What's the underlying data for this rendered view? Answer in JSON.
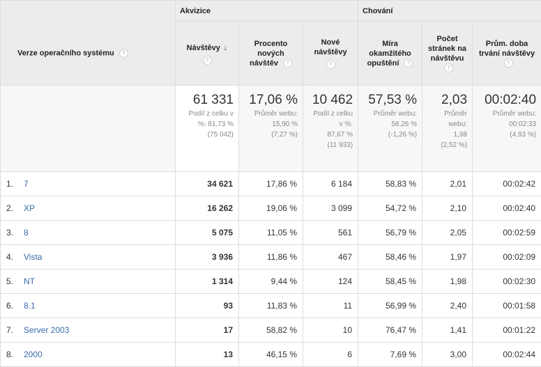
{
  "header": {
    "dimension_label": "Verze operačního systému",
    "group_acquisition": "Akvizice",
    "group_behavior": "Chování",
    "help_glyph": "?",
    "sort_glyph": "↓",
    "columns": [
      {
        "key": "visits",
        "label": "Návštěvy"
      },
      {
        "key": "pct_new",
        "label": "Procento nových návštěv"
      },
      {
        "key": "new_visits",
        "label": "Nové návštěvy"
      },
      {
        "key": "bounce",
        "label": "Míra okamžitého opuštění"
      },
      {
        "key": "pages",
        "label": "Počet stránek na návštěvu"
      },
      {
        "key": "duration",
        "label": "Prům. doba trvání návštěvy"
      }
    ]
  },
  "totals": {
    "visits": {
      "value": "61 331",
      "sub1": "Podíl z celku v",
      "sub2": "%: 81,73 %",
      "sub3": "(75 042)"
    },
    "pct_new": {
      "value": "17,06 %",
      "sub1": "Průměr webu:",
      "sub2": "15,90 %",
      "sub3": "(7,27 %)"
    },
    "new_visits": {
      "value": "10 462",
      "sub1": "Podíl z celku",
      "sub2": "v %:",
      "sub3": "87,67 %",
      "sub4": "(11 933)"
    },
    "bounce": {
      "value": "57,53 %",
      "sub1": "Průměr webu:",
      "sub2": "58,26 %",
      "sub3": "(-1,26 %)"
    },
    "pages": {
      "value": "2,03",
      "sub1": "Průměr",
      "sub2": "webu:",
      "sub3": "1,98",
      "sub4": "(2,52 %)"
    },
    "duration": {
      "value": "00:02:40",
      "sub1": "Průměr webu:",
      "sub2": "00:02:33",
      "sub3": "(4,93 %)"
    }
  },
  "rows": [
    {
      "idx": "1.",
      "name": "7",
      "visits": "34 621",
      "pct_new": "17,86 %",
      "new_visits": "6 184",
      "bounce": "58,83 %",
      "pages": "2,01",
      "duration": "00:02:42"
    },
    {
      "idx": "2.",
      "name": "XP",
      "visits": "16 262",
      "pct_new": "19,06 %",
      "new_visits": "3 099",
      "bounce": "54,72 %",
      "pages": "2,10",
      "duration": "00:02:40"
    },
    {
      "idx": "3.",
      "name": "8",
      "visits": "5 075",
      "pct_new": "11,05 %",
      "new_visits": "561",
      "bounce": "56,79 %",
      "pages": "2,05",
      "duration": "00:02:59"
    },
    {
      "idx": "4.",
      "name": "Vista",
      "visits": "3 936",
      "pct_new": "11,86 %",
      "new_visits": "467",
      "bounce": "58,46 %",
      "pages": "1,97",
      "duration": "00:02:09"
    },
    {
      "idx": "5.",
      "name": "NT",
      "visits": "1 314",
      "pct_new": "9,44 %",
      "new_visits": "124",
      "bounce": "58,45 %",
      "pages": "1,98",
      "duration": "00:02:30"
    },
    {
      "idx": "6.",
      "name": "8.1",
      "visits": "93",
      "pct_new": "11,83 %",
      "new_visits": "11",
      "bounce": "56,99 %",
      "pages": "2,40",
      "duration": "00:01:58"
    },
    {
      "idx": "7.",
      "name": "Server 2003",
      "visits": "17",
      "pct_new": "58,82 %",
      "new_visits": "10",
      "bounce": "76,47 %",
      "pages": "1,41",
      "duration": "00:01:22"
    },
    {
      "idx": "8.",
      "name": "2000",
      "visits": "13",
      "pct_new": "46,15 %",
      "new_visits": "6",
      "bounce": "7,69 %",
      "pages": "3,00",
      "duration": "00:02:44"
    }
  ]
}
